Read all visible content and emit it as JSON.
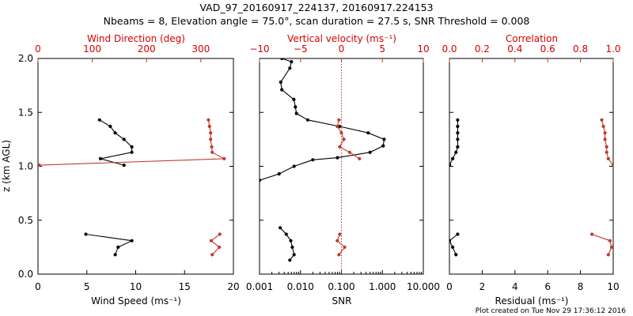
{
  "figure": {
    "title": "VAD_97_20160917_224137, 20160917.224153",
    "subtitle": "Nbeams = 8, Elevation angle = 75.0°, scan duration = 27.5 s, SNR Threshold = 0.008",
    "credit": "Plot created on Tue Nov 29 17:36:12 2016"
  },
  "colors": {
    "primary": "#000000",
    "secondary": "#c0392b",
    "secondary_text": "#d40000"
  },
  "chart_data": [
    {
      "type": "line",
      "panel": "wind",
      "xlabel": "Wind Speed (ms⁻¹)",
      "x2label": "Wind Direction (deg)",
      "ylabel": "z (km AGL)",
      "xlim": [
        0,
        20
      ],
      "x2lim": [
        0,
        360
      ],
      "ylim": [
        0,
        2.0
      ],
      "xticks": [
        "0",
        "5",
        "10",
        "15",
        "20"
      ],
      "x2ticks": [
        "0",
        "100",
        "200",
        "300"
      ],
      "yticks": [
        "0.0",
        "0.5",
        "1.0",
        "1.5",
        "2.0"
      ],
      "series": [
        {
          "axis": "x",
          "color": "black",
          "segments": [
            [
              [
                7.9,
                0.18
              ],
              [
                8.2,
                0.25
              ],
              [
                9.6,
                0.31
              ],
              [
                4.9,
                0.37
              ]
            ],
            [
              [
                8.8,
                1.01
              ],
              [
                6.4,
                1.07
              ],
              [
                9.6,
                1.13
              ],
              [
                9.6,
                1.18
              ],
              [
                8.8,
                1.25
              ],
              [
                7.9,
                1.31
              ],
              [
                7.4,
                1.37
              ],
              [
                6.3,
                1.43
              ]
            ]
          ]
        },
        {
          "axis": "x2",
          "color": "red",
          "segments": [
            [
              [
                321,
                0.18
              ],
              [
                334,
                0.25
              ],
              [
                319,
                0.31
              ],
              [
                335,
                0.37
              ]
            ],
            [
              [
                2,
                1.01
              ],
              [
                343,
                1.07
              ],
              [
                321,
                1.13
              ],
              [
                320,
                1.18
              ],
              [
                318,
                1.25
              ],
              [
                318,
                1.31
              ],
              [
                316,
                1.37
              ],
              [
                314,
                1.43
              ]
            ]
          ]
        }
      ]
    },
    {
      "type": "line",
      "panel": "snr",
      "xscale": "log",
      "xlabel": "SNR",
      "x2label": "Vertical velocity (ms⁻¹)",
      "xlim": [
        0.001,
        10
      ],
      "x2lim": [
        -10,
        10
      ],
      "ylim": [
        0,
        2.0
      ],
      "xticks": [
        "0.001",
        "0.010",
        "0.100",
        "1.000",
        "10.000"
      ],
      "x2ticks": [
        "−10",
        "−5",
        "0",
        "5",
        "10"
      ],
      "threshold_x": 0.1,
      "series": [
        {
          "axis": "x",
          "color": "black",
          "segments": [
            [
              [
                0.0055,
                0.13
              ],
              [
                0.007,
                0.18
              ],
              [
                0.0063,
                0.25
              ],
              [
                0.0058,
                0.31
              ],
              [
                0.0045,
                0.37
              ],
              [
                0.0032,
                0.43
              ]
            ],
            [
              [
                0.001,
                0.87
              ],
              [
                0.003,
                0.93
              ],
              [
                0.007,
                1.0
              ],
              [
                0.02,
                1.06
              ],
              [
                0.08,
                1.08
              ],
              [
                0.5,
                1.13
              ],
              [
                1.05,
                1.19
              ],
              [
                1.1,
                1.25
              ],
              [
                0.45,
                1.31
              ],
              [
                0.09,
                1.37
              ],
              [
                0.015,
                1.43
              ],
              [
                0.008,
                1.49
              ],
              [
                0.0075,
                1.55
              ],
              [
                0.0069,
                1.62
              ],
              [
                0.0035,
                1.71
              ],
              [
                0.0033,
                1.78
              ],
              [
                0.0055,
                1.91
              ],
              [
                0.006,
                1.97
              ],
              [
                0.0035,
                2.0
              ]
            ]
          ]
        },
        {
          "axis": "x2",
          "color": "red",
          "segments": [
            [
              [
                -0.3,
                0.18
              ],
              [
                0.4,
                0.25
              ],
              [
                -0.5,
                0.31
              ],
              [
                -0.2,
                0.37
              ]
            ],
            [
              [
                2.2,
                1.07
              ],
              [
                1.0,
                1.13
              ],
              [
                -0.2,
                1.18
              ],
              [
                0.3,
                1.25
              ],
              [
                0.0,
                1.31
              ],
              [
                -0.5,
                1.37
              ],
              [
                -0.3,
                1.43
              ]
            ]
          ]
        }
      ]
    },
    {
      "type": "line",
      "panel": "residual",
      "xlabel": "Residual (ms⁻¹)",
      "x2label": "Correlation",
      "xlim": [
        0,
        10
      ],
      "x2lim": [
        0,
        1
      ],
      "ylim": [
        0,
        2.0
      ],
      "xticks": [
        "0",
        "2",
        "4",
        "6",
        "8",
        "10"
      ],
      "x2ticks": [
        "0.0",
        "0.2",
        "0.4",
        "0.6",
        "0.8",
        "1.0"
      ],
      "series": [
        {
          "axis": "x",
          "color": "black",
          "segments": [
            [
              [
                0.4,
                0.18
              ],
              [
                0.2,
                0.25
              ],
              [
                0.0,
                0.31
              ],
              [
                0.5,
                0.37
              ]
            ],
            [
              [
                0.0,
                1.01
              ],
              [
                0.2,
                1.07
              ],
              [
                0.4,
                1.13
              ],
              [
                0.5,
                1.18
              ],
              [
                0.5,
                1.25
              ],
              [
                0.5,
                1.31
              ],
              [
                0.5,
                1.37
              ],
              [
                0.5,
                1.43
              ]
            ]
          ]
        },
        {
          "axis": "x2",
          "color": "red",
          "segments": [
            [
              [
                0.97,
                0.18
              ],
              [
                0.99,
                0.25
              ],
              [
                0.98,
                0.31
              ],
              [
                0.87,
                0.37
              ]
            ],
            [
              [
                1.0,
                1.01
              ],
              [
                0.97,
                1.07
              ],
              [
                0.96,
                1.13
              ],
              [
                0.96,
                1.18
              ],
              [
                0.95,
                1.25
              ],
              [
                0.95,
                1.31
              ],
              [
                0.94,
                1.37
              ],
              [
                0.93,
                1.43
              ]
            ]
          ]
        }
      ]
    }
  ]
}
